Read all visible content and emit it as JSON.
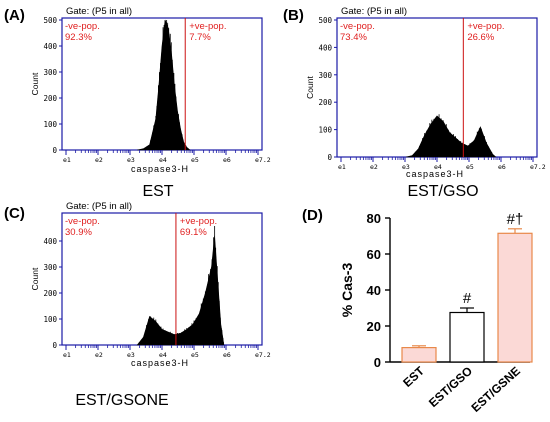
{
  "panels": [
    {
      "letter": "(A)",
      "gate": "Gate: (P5 in all)",
      "neg_label": "-ve-pop.",
      "neg_value": "92.3%",
      "pos_label": "+ve-pop.",
      "pos_value": "7.7%",
      "caption": "EST",
      "ylabel": "Count",
      "xlabel": "caspase3-H",
      "y_ticks": [
        "0",
        "100",
        "200",
        "300",
        "400",
        "500"
      ],
      "x_tick_labels": [
        "e1",
        "e2",
        "e3",
        "e4",
        "e5",
        "e6",
        "e7.2"
      ]
    },
    {
      "letter": "(B)",
      "gate": "Gate: (P5 in all)",
      "neg_label": "-ve-pop.",
      "neg_value": "73.4%",
      "pos_label": "+ve-pop.",
      "pos_value": "26.6%",
      "caption": "EST/GSO",
      "ylabel": "Count",
      "xlabel": "caspase3-H",
      "y_ticks": [
        "0",
        "100",
        "200",
        "300",
        "400",
        "500"
      ],
      "x_tick_labels": [
        "e1",
        "e2",
        "e3",
        "e4",
        "e5",
        "e6",
        "e7.2"
      ]
    },
    {
      "letter": "(C)",
      "gate": "Gate: (P5 in all)",
      "neg_label": "-ve-pop.",
      "neg_value": "30.9%",
      "pos_label": "+ve-pop.",
      "pos_value": "69.1%",
      "caption": "EST/GSONE",
      "ylabel": "Count",
      "xlabel": "caspase3-H",
      "y_ticks": [
        "0",
        "100",
        "200",
        "300",
        "400"
      ],
      "x_tick_labels": [
        "e1",
        "e2",
        "e3",
        "e4",
        "e5",
        "e6",
        "e7.2"
      ]
    }
  ],
  "colors": {
    "frame": "#1a1aa6",
    "gate_line": "#cc1111",
    "label_red": "#e02020",
    "hist": "#000000",
    "bar_fill_pink": "#fbd9d6",
    "bar_edge_orange": "#e8894a",
    "bar_fill_white": "#ffffff"
  },
  "chart_data": [
    {
      "type": "area",
      "panel": "(A)",
      "xlabel": "caspase3-H",
      "ylabel": "Count",
      "xscale": "log",
      "xlim": [
        1,
        7.2
      ],
      "ylim": [
        0,
        500
      ],
      "x": [
        3.3,
        3.5,
        3.7,
        3.9,
        4.0,
        4.1,
        4.2,
        4.3,
        4.4,
        4.5,
        4.6,
        4.7,
        4.8,
        4.9,
        5.0
      ],
      "y": [
        0,
        5,
        20,
        120,
        250,
        400,
        500,
        470,
        380,
        250,
        150,
        80,
        30,
        10,
        0
      ],
      "gate_x": 4.85
    },
    {
      "type": "area",
      "panel": "(B)",
      "xlabel": "caspase3-H",
      "ylabel": "Count",
      "xscale": "log",
      "xlim": [
        1,
        7.2
      ],
      "ylim": [
        0,
        500
      ],
      "x": [
        3.1,
        3.3,
        3.5,
        3.7,
        3.9,
        4.1,
        4.3,
        4.5,
        4.7,
        4.9,
        5.1,
        5.3,
        5.5,
        5.7,
        5.9,
        6.0
      ],
      "y": [
        0,
        5,
        30,
        80,
        120,
        150,
        130,
        90,
        70,
        50,
        40,
        60,
        110,
        50,
        10,
        0
      ],
      "gate_x": 4.95
    },
    {
      "type": "area",
      "panel": "(C)",
      "xlabel": "caspase3-H",
      "ylabel": "Count",
      "xscale": "log",
      "xlim": [
        1,
        7.2
      ],
      "ylim": [
        0,
        500
      ],
      "x": [
        3.3,
        3.5,
        3.7,
        3.9,
        4.1,
        4.3,
        4.5,
        4.7,
        4.9,
        5.1,
        5.3,
        5.5,
        5.7,
        5.8,
        5.9,
        6.0,
        6.1
      ],
      "y": [
        0,
        30,
        110,
        90,
        60,
        50,
        40,
        45,
        60,
        80,
        120,
        200,
        300,
        420,
        250,
        80,
        0
      ],
      "gate_x": 4.55
    },
    {
      "type": "bar",
      "panel": "(D)",
      "categories": [
        "EST",
        "EST/GSO",
        "EST/GSNE"
      ],
      "values": [
        8,
        27.5,
        71.5
      ],
      "errors": [
        1,
        2.5,
        2.5
      ],
      "annotations": [
        "",
        "#",
        "#†"
      ],
      "ylabel": "% Cas-3",
      "xlabel": "",
      "ylim": [
        0,
        80
      ],
      "y_ticks": [
        0,
        20,
        40,
        60,
        80
      ]
    }
  ],
  "panel_d": {
    "letter": "(D)",
    "ylabel": "% Cas-3"
  }
}
